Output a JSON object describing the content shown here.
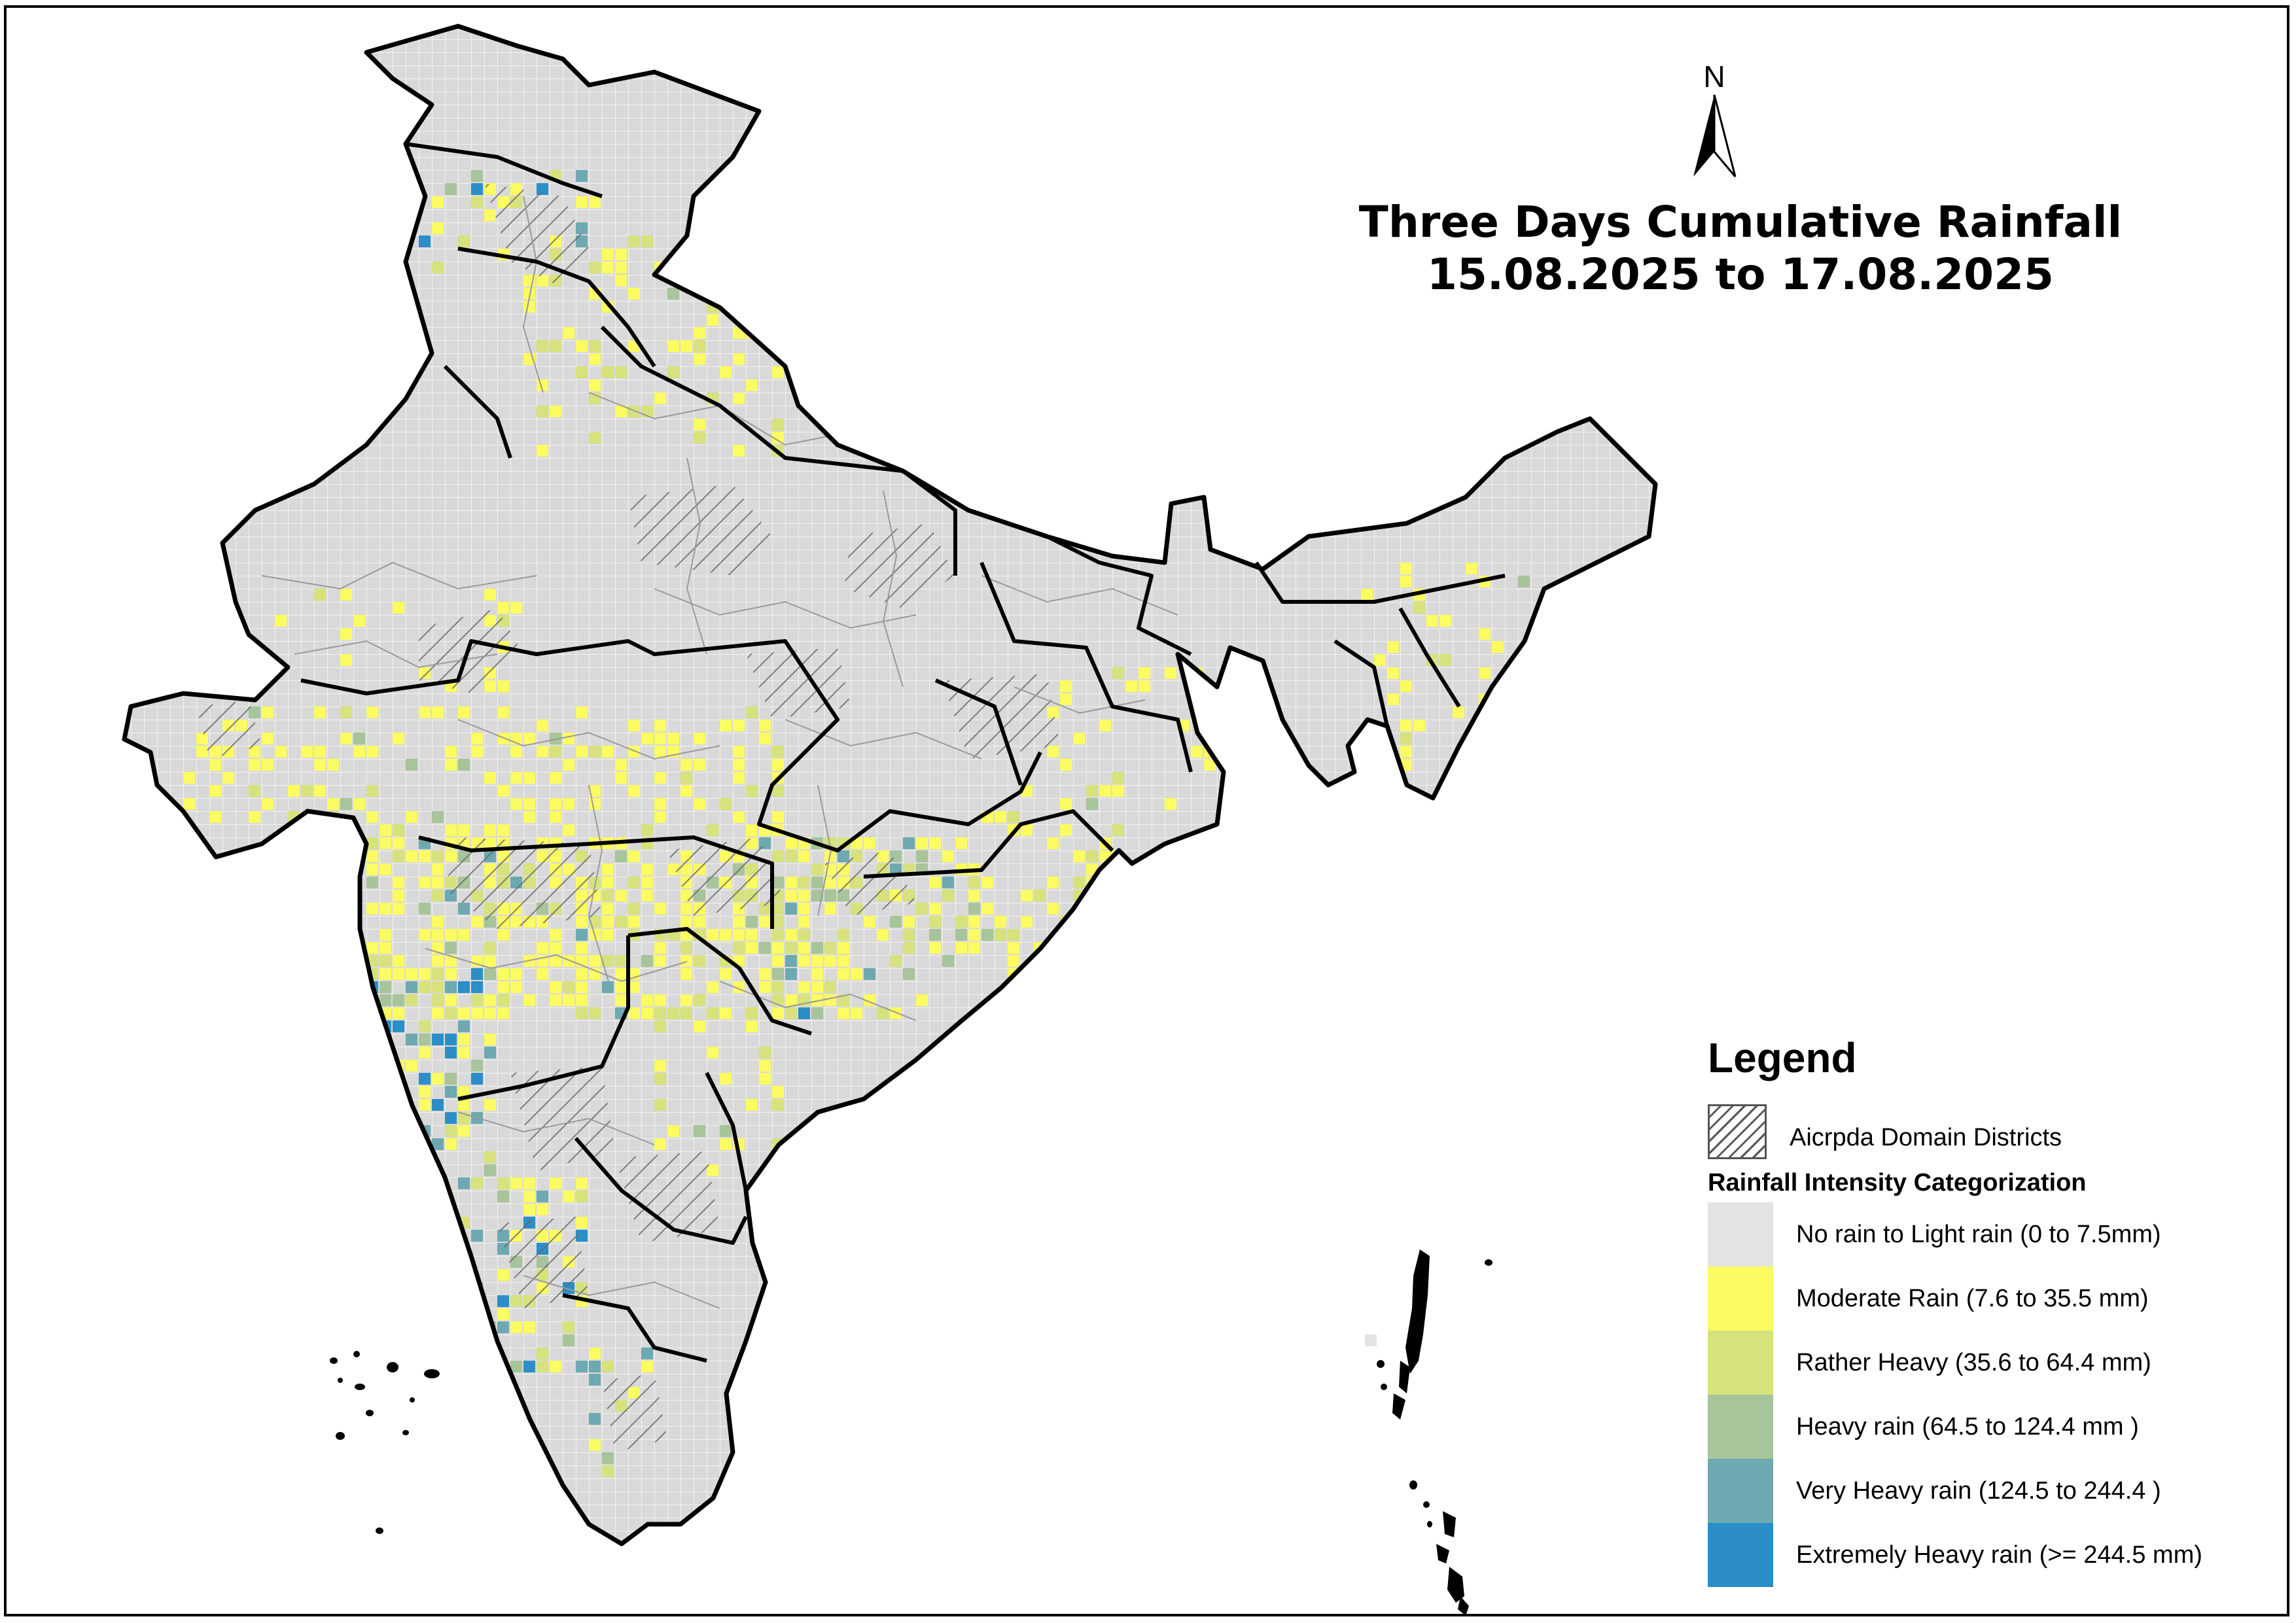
{
  "map": {
    "title_line1": "Three Days Cumulative Rainfall",
    "title_line2": "15.08.2025 to 17.08.2025",
    "north_label": "N"
  },
  "legend": {
    "title": "Legend",
    "hatch_label": "Aicrpda Domain Districts",
    "category_title": "Rainfall Intensity Categorization",
    "categories": [
      {
        "label": "No rain to Light rain (0 to 7.5mm)",
        "color": "#e3e3e3"
      },
      {
        "label": "Moderate Rain (7.6 to 35.5 mm)",
        "color": "#fbfb62"
      },
      {
        "label": "Rather Heavy (35.6 to 64.4 mm)",
        "color": "#d7e27d"
      },
      {
        "label": "Heavy rain (64.5 to 124.4 mm )",
        "color": "#a7c49a"
      },
      {
        "label": "Very Heavy rain (124.5 to 244.4 )",
        "color": "#6ea9b1"
      },
      {
        "label": "Extremely Heavy rain  (>= 244.5 mm)",
        "color": "#2b8ec7"
      }
    ]
  },
  "colors": {
    "land": "#d9d9d9",
    "boundary": "#000000",
    "district_lines": "#9a9a9a",
    "hatch": "#666666"
  }
}
